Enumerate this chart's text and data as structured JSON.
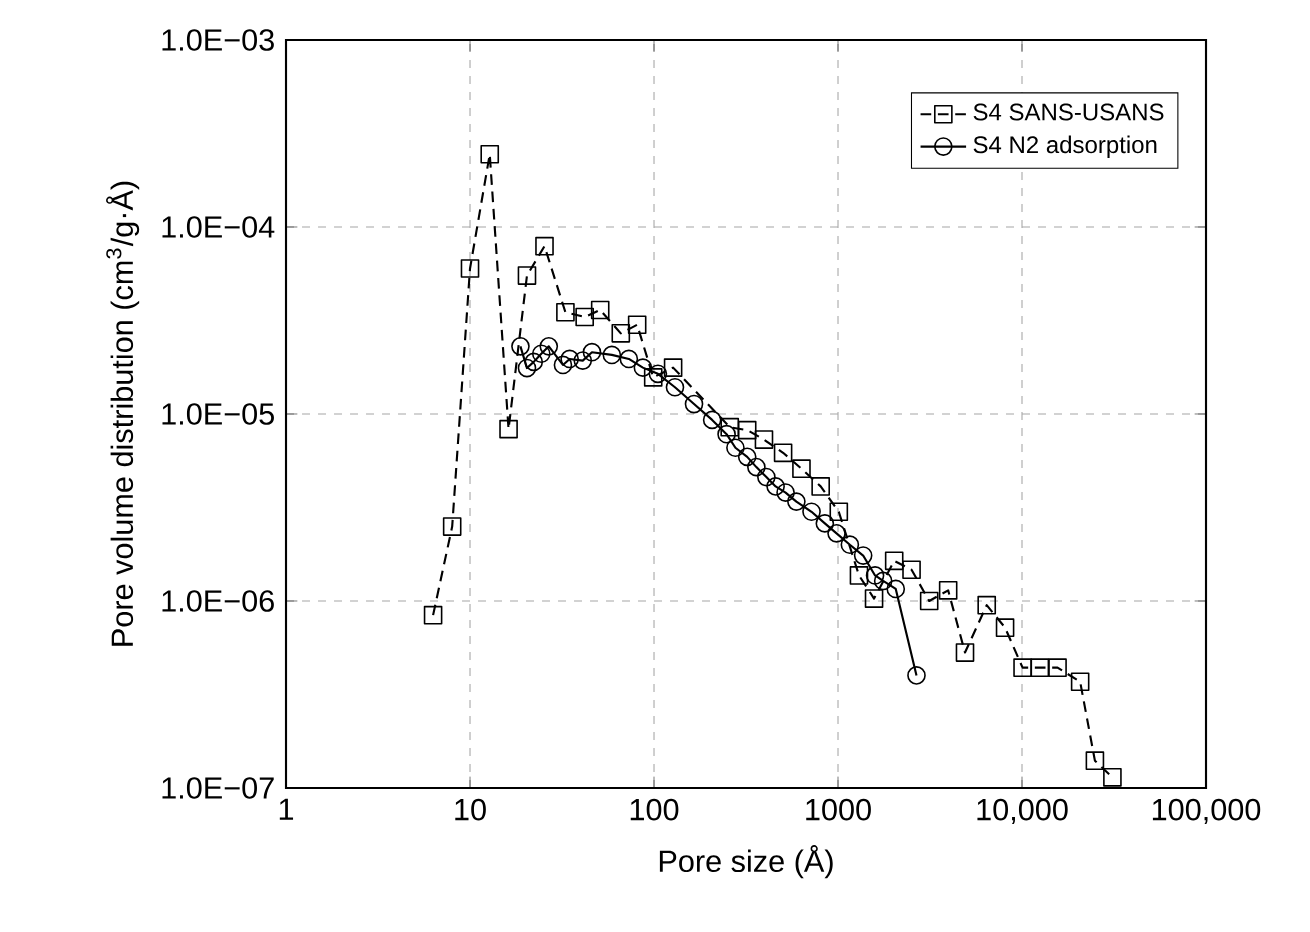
{
  "chart_data": {
    "type": "line",
    "xlabel": "Pore size (Å)",
    "ylabel": "Pore volume distribution (cm$^{3}$/g·Å)",
    "log": "xy",
    "xlim": [
      1,
      100000
    ],
    "ylim": [
      1e-07,
      0.001
    ],
    "xticks": [
      1,
      10,
      100,
      1000,
      {
        "value": 10000,
        "label": "10,000"
      },
      {
        "value": 100000,
        "label": "100,000"
      }
    ],
    "yticks": [
      {
        "value": 1e-07,
        "label": "1.0E−07"
      },
      {
        "value": 1e-06,
        "label": "1.0E−06"
      },
      {
        "value": 1e-05,
        "label": "1.0E−05"
      },
      {
        "value": 0.0001,
        "label": "1.0E−04"
      },
      {
        "value": 0.001,
        "label": "1.0E−03"
      }
    ],
    "grid": true,
    "legend": "top right",
    "series": [
      {
        "name": "S4 SANS-USANS",
        "color": "#000000",
        "marker": "square",
        "line_style": "dashed",
        "x": [
          6.3,
          8.0,
          10,
          12.8,
          16.2,
          20.4,
          25.4,
          33,
          42,
          51,
          66,
          81,
          99,
          127,
          258,
          321,
          396,
          503,
          633,
          805,
          1010,
          1300,
          1570,
          2020,
          2510,
          3130,
          3970,
          4900,
          6430,
          8090,
          10070,
          12500,
          15600,
          20700,
          24900,
          31000
        ],
        "values": [
          8.4e-07,
          2.5e-06,
          6e-05,
          0.000245,
          8.3e-06,
          5.5e-05,
          7.9e-05,
          3.5e-05,
          3.3e-05,
          3.6e-05,
          2.7e-05,
          3e-05,
          1.57e-05,
          1.77e-05,
          8.5e-06,
          8.2e-06,
          7.3e-06,
          6.2e-06,
          5.1e-06,
          4.1e-06,
          3e-06,
          1.37e-06,
          1.03e-06,
          1.64e-06,
          1.47e-06,
          1e-06,
          1.14e-06,
          5.3e-07,
          9.5e-07,
          7.2e-07,
          4.4e-07,
          4.4e-07,
          4.4e-07,
          3.7e-07,
          1.4e-07,
          1.14e-07
        ]
      },
      {
        "name": "S4 N2 adsorption",
        "color": "#000000",
        "marker": "circle",
        "line_style": "solid",
        "x": [
          18.8,
          20.4,
          22.2,
          24.4,
          26.8,
          29.1,
          32,
          34.8,
          41,
          46,
          59,
          73,
          87,
          105,
          130,
          165,
          207,
          248,
          277,
          321,
          360,
          408,
          458,
          519,
          594,
          718,
          848,
          982,
          1160,
          1370,
          1590,
          1760,
          2060,
          2670
        ],
        "values": [
          2.3e-05,
          1.76e-05,
          1.9e-05,
          2.1e-05,
          2.3e-05,
          null,
          1.83e-05,
          1.97e-05,
          1.93e-05,
          2.14e-05,
          2.07e-05,
          1.97e-05,
          1.77e-05,
          1.64e-05,
          1.39e-05,
          1.13e-05,
          9.3e-06,
          7.8e-06,
          6.6e-06,
          5.9e-06,
          5.2e-06,
          4.6e-06,
          4.1e-06,
          3.8e-06,
          3.4e-06,
          3e-06,
          2.6e-06,
          2.3e-06,
          2e-06,
          1.75e-06,
          1.37e-06,
          1.28e-06,
          1.16e-06,
          4e-07
        ]
      }
    ]
  }
}
